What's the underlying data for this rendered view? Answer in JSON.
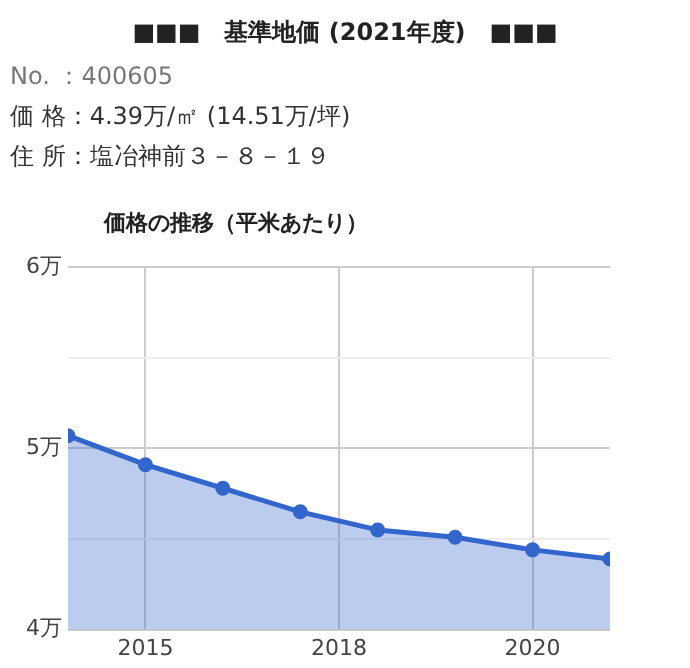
{
  "chart_data": {
    "type": "area",
    "title": "■■■　基準地価 (2021年度)　■■■",
    "subtitle": "価格の推移（平米あたり）",
    "annotations": [
      "No. ：400605",
      "価 格：4.39万/㎡ (14.51万/坪)",
      "住 所：塩冶神前３－８－１９"
    ],
    "x": [
      2014,
      2015,
      2016,
      2017,
      2018,
      2019,
      2020,
      2021
    ],
    "series": [
      {
        "color": "#3366cc",
        "values": [
          5.07,
          4.91,
          4.78,
          4.65,
          4.55,
          4.51,
          4.44,
          4.39
        ]
      }
    ],
    "xlim": [
      2014,
      2021
    ],
    "xticks": [
      2015,
      {
        "value": 2017.5,
        "label": "2018"
      },
      2020
    ],
    "ylim": [
      4,
      6
    ],
    "yticks": [
      {
        "value": 4,
        "label": "4万"
      },
      {
        "value": 4.5,
        "label": null
      },
      {
        "value": 5,
        "label": "5万"
      },
      {
        "value": 5.5,
        "label": null
      },
      {
        "value": 6,
        "label": "6万"
      }
    ],
    "grid": true,
    "legend": false,
    "marker": "circle",
    "line_style": "solid"
  }
}
